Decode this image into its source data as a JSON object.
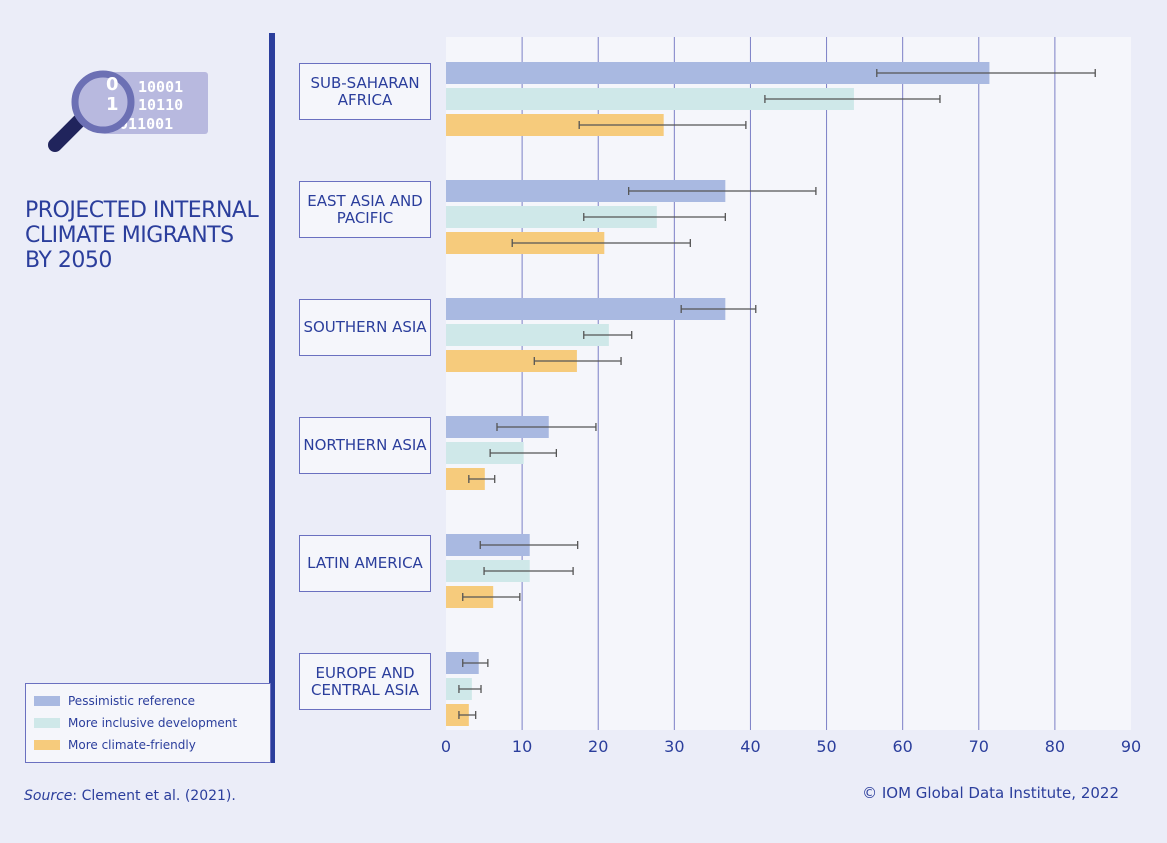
{
  "title": "PROJECTED INTERNAL CLIMATE MIGRANTS BY 2050",
  "icon": {
    "name": "magnifier-binary-icon",
    "binary_text": [
      "10001",
      "10110",
      "0011001"
    ],
    "lens_text": [
      "0",
      "1"
    ]
  },
  "source": {
    "label": "Source",
    "text": ": Clement et al. (2021)."
  },
  "copyright": "© IOM Global Data Institute, 2022",
  "chart_data": {
    "type": "bar",
    "orientation": "horizontal",
    "categories": [
      "SUB-SAHARAN AFRICA",
      "EAST ASIA AND PACIFIC",
      "SOUTHERN ASIA",
      "NORTHERN ASIA",
      "LATIN AMERICA",
      "EUROPE AND CENTRAL ASIA"
    ],
    "xlim": [
      0,
      90
    ],
    "xticks": [
      "0",
      "10",
      "20",
      "30",
      "40",
      "50",
      "60",
      "70",
      "80",
      "90"
    ],
    "grid": true,
    "legend_position": "bottom-left",
    "series": [
      {
        "name": "Pessimistic reference",
        "color": "#a9b9e1",
        "values": [
          71.4,
          36.7,
          36.7,
          13.5,
          11.0,
          4.3
        ],
        "err_low": [
          56.6,
          24.0,
          30.9,
          6.7,
          4.5,
          2.2
        ],
        "err_high": [
          85.3,
          48.6,
          40.7,
          19.7,
          17.3,
          5.5
        ]
      },
      {
        "name": "More inclusive development",
        "color": "#cfe8e9",
        "values": [
          53.6,
          27.7,
          21.4,
          10.2,
          11.0,
          3.4
        ],
        "err_low": [
          41.9,
          18.1,
          18.1,
          5.8,
          5.0,
          1.7
        ],
        "err_high": [
          64.9,
          36.7,
          24.4,
          14.5,
          16.7,
          4.6
        ]
      },
      {
        "name": "More climate-friendly",
        "color": "#f6cb7c",
        "values": [
          28.6,
          20.8,
          17.2,
          5.1,
          6.2,
          3.0
        ],
        "err_low": [
          17.5,
          8.7,
          11.6,
          3.0,
          2.2,
          1.7
        ],
        "err_high": [
          39.4,
          32.1,
          23.0,
          6.4,
          9.7,
          3.9
        ]
      }
    ]
  }
}
